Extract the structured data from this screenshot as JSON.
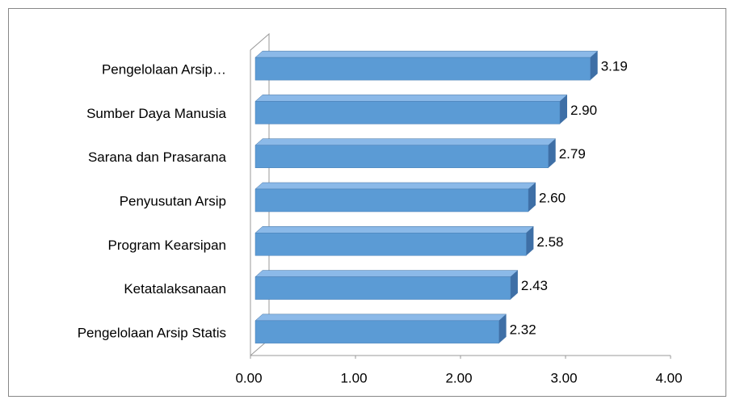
{
  "chart_data": {
    "type": "bar",
    "orientation": "horizontal",
    "categories": [
      "Pengelolaan Arsip…",
      "Sumber Daya Manusia",
      "Sarana dan Prasarana",
      "Penyusutan Arsip",
      "Program Kearsipan",
      "Ketatalaksanaan",
      "Pengelolaan Arsip Statis"
    ],
    "values": [
      3.19,
      2.9,
      2.79,
      2.6,
      2.58,
      2.43,
      2.32
    ],
    "value_labels": [
      "3.19",
      "2.90",
      "2.79",
      "2.60",
      "2.58",
      "2.43",
      "2.32"
    ],
    "color": "#5b9bd5",
    "xlim": [
      0,
      4
    ],
    "xticks": [
      {
        "value": 0,
        "label": "0.00"
      },
      {
        "value": 1,
        "label": "1.00"
      },
      {
        "value": 2,
        "label": "2.00"
      },
      {
        "value": 3,
        "label": "3.00"
      },
      {
        "value": 4,
        "label": "4.00"
      }
    ],
    "grid": false
  }
}
